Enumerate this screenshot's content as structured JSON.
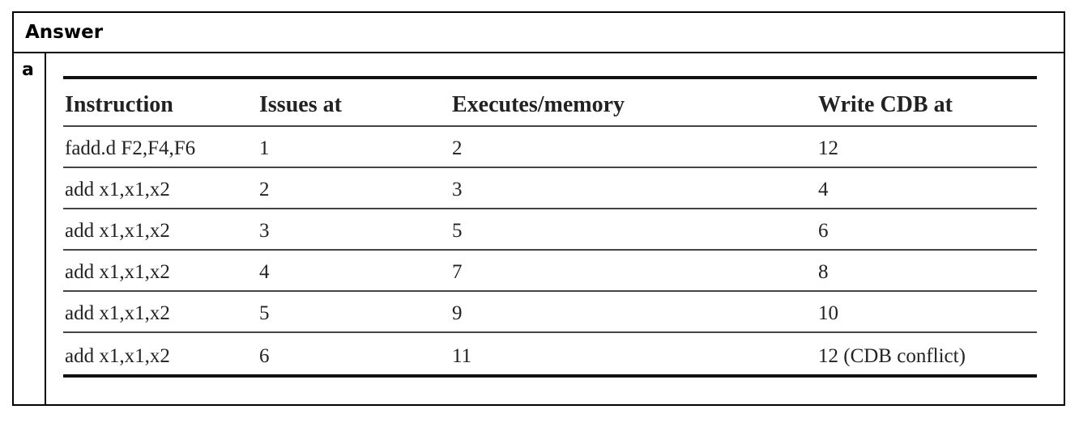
{
  "header": {
    "title": "Answer"
  },
  "part_label": "a",
  "table": {
    "columns": [
      "Instruction",
      "Issues at",
      "Executes/memory",
      "Write CDB at"
    ],
    "rows": [
      [
        "fadd.d F2,F4,F6",
        "1",
        "2",
        "12"
      ],
      [
        "add x1,x1,x2",
        "2",
        "3",
        "4"
      ],
      [
        "add x1,x1,x2",
        "3",
        "5",
        "6"
      ],
      [
        "add x1,x1,x2",
        "4",
        "7",
        "8"
      ],
      [
        "add x1,x1,x2",
        "5",
        "9",
        "10"
      ],
      [
        "add x1,x1,x2",
        "6",
        "11",
        "12 (CDB conflict)"
      ]
    ]
  }
}
